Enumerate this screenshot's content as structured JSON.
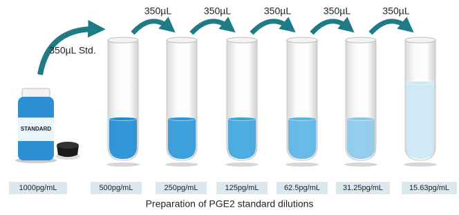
{
  "transfer_labels": [
    "350µL Std.",
    "350µL",
    "350µL",
    "350µL",
    "350µL",
    "350µL"
  ],
  "bottle_label": "STANDARD",
  "concentrations": [
    "1000pg/mL",
    "500pg/mL",
    "250pg/mL",
    "125pg/mL",
    "62.5pg/mL",
    "31.25pg/mL",
    "15.63pg/mL"
  ],
  "caption": "Preparation of PGE2 standard dilutions"
}
